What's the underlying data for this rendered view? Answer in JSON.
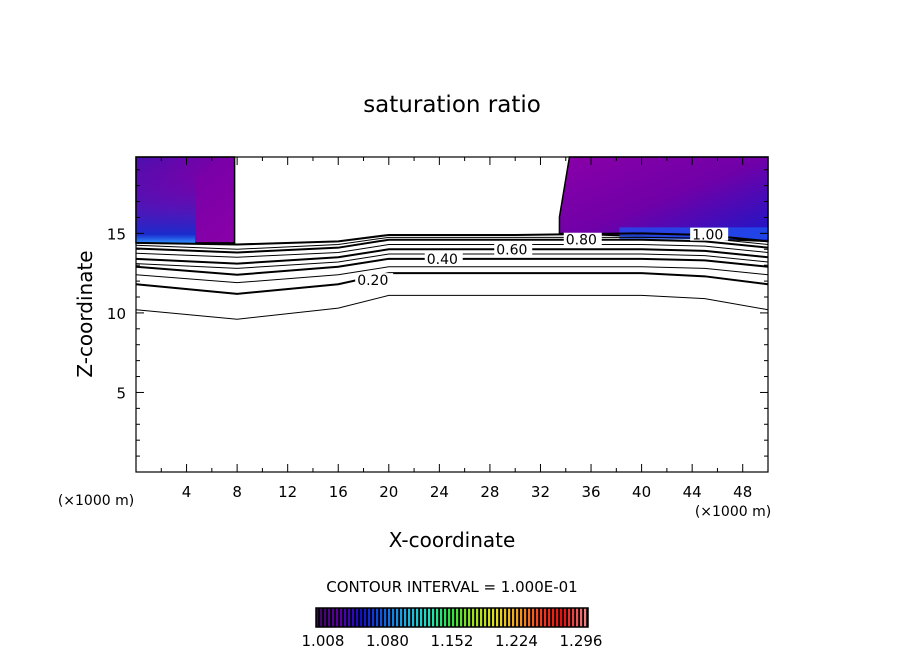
{
  "chart_data": {
    "type": "contour",
    "title": "saturation ratio",
    "xlabel": "X-coordinate",
    "ylabel": "Z-coordinate",
    "x_unit_label": "(×1000 m)",
    "z_unit_label": "(×1000 m)",
    "xlim": [
      0,
      50
    ],
    "ylim": [
      0,
      19.8
    ],
    "xticks": [
      4,
      8,
      12,
      16,
      20,
      24,
      28,
      32,
      36,
      40,
      44,
      48
    ],
    "yticks": [
      5,
      10,
      15
    ],
    "contour_interval_label": "CONTOUR INTERVAL = 1.000E-01",
    "contour_x": [
      0,
      8,
      16,
      20,
      30,
      40,
      45,
      50
    ],
    "contours": [
      {
        "level": 0.1,
        "label": "",
        "z": [
          10.2,
          9.6,
          10.3,
          11.1,
          11.1,
          11.1,
          10.9,
          10.2
        ],
        "bold": false
      },
      {
        "level": 0.2,
        "label": "0.20",
        "z": [
          11.8,
          11.2,
          11.8,
          12.5,
          12.5,
          12.5,
          12.3,
          11.8
        ],
        "bold": true
      },
      {
        "level": 0.3,
        "label": "",
        "z": [
          12.4,
          11.9,
          12.4,
          12.9,
          12.9,
          12.9,
          12.8,
          12.4
        ],
        "bold": false
      },
      {
        "level": 0.4,
        "label": "0.40",
        "z": [
          12.9,
          12.4,
          12.9,
          13.4,
          13.4,
          13.4,
          13.3,
          12.9
        ],
        "bold": true
      },
      {
        "level": 0.5,
        "label": "",
        "z": [
          13.1,
          12.8,
          13.2,
          13.7,
          13.7,
          13.7,
          13.6,
          13.2
        ],
        "bold": false
      },
      {
        "level": 0.6,
        "label": "0.60",
        "z": [
          13.4,
          13.1,
          13.5,
          14.0,
          14.0,
          14.0,
          13.9,
          13.5
        ],
        "bold": true
      },
      {
        "level": 0.7,
        "label": "",
        "z": [
          13.75,
          13.5,
          13.8,
          14.3,
          14.3,
          14.3,
          14.2,
          13.8
        ],
        "bold": false
      },
      {
        "level": 0.8,
        "label": "0.80",
        "z": [
          14.05,
          13.8,
          14.1,
          14.6,
          14.6,
          14.6,
          14.5,
          14.1
        ],
        "bold": true
      },
      {
        "level": 0.9,
        "label": "",
        "z": [
          14.25,
          14.0,
          14.3,
          14.75,
          14.75,
          14.75,
          14.7,
          14.3
        ],
        "bold": false
      },
      {
        "level": 1.0,
        "label": "1.00",
        "z": [
          14.4,
          14.3,
          14.5,
          14.9,
          14.9,
          15.0,
          14.9,
          14.5
        ],
        "bold": true
      }
    ],
    "filled_regions": [
      {
        "name": "left-supersaturated",
        "x": [
          0,
          7.8
        ],
        "z": [
          14.4,
          19.8
        ]
      },
      {
        "name": "right-supersaturated",
        "x": [
          33.5,
          50
        ],
        "z": [
          15.0,
          19.8
        ]
      }
    ],
    "colorbar": {
      "tick_labels": [
        "1.008",
        "1.080",
        "1.152",
        "1.224",
        "1.296"
      ],
      "colors": [
        "#3a0a5a",
        "#5a00a0",
        "#1010c0",
        "#1060e0",
        "#20b0e0",
        "#20e0c0",
        "#30e040",
        "#a0e020",
        "#e0e020",
        "#f0a020",
        "#f04020",
        "#e01010",
        "#f08080"
      ]
    },
    "fill_colors": {
      "top": "#7a00a8",
      "mid": "#4a10b0",
      "low": "#2020c0",
      "edge": "#2080ff"
    }
  }
}
